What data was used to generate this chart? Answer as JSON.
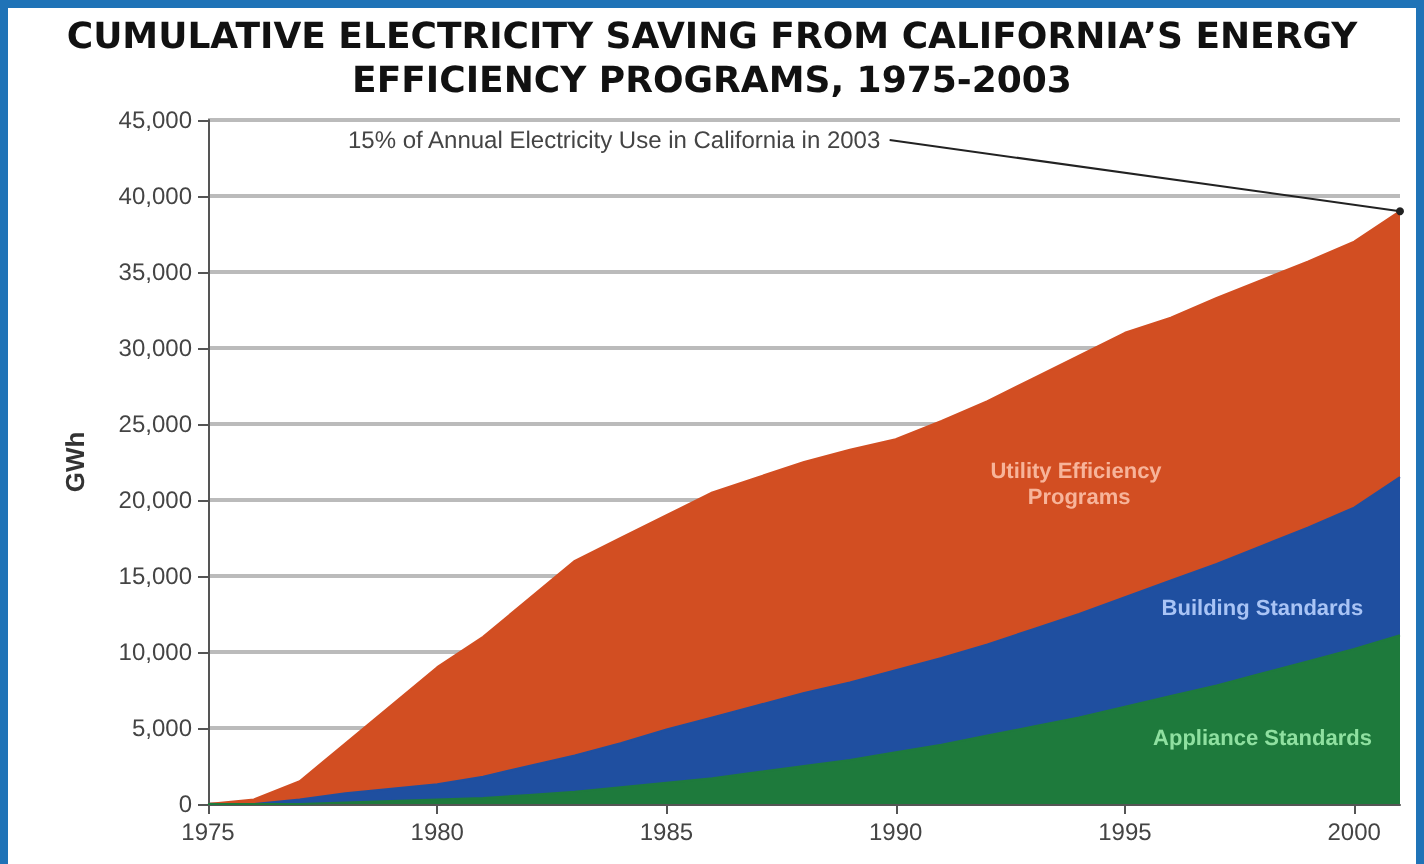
{
  "chart_data": {
    "type": "area",
    "stacked": true,
    "title": "CUMULATIVE ELECTRICITY SAVING FROM CALIFORNIA’S ENERGY EFFICIENCY PROGRAMS, 1975-2003",
    "ylabel": "GWh",
    "x": [
      1975,
      1976,
      1977,
      1978,
      1979,
      1980,
      1981,
      1982,
      1983,
      1984,
      1985,
      1986,
      1987,
      1988,
      1989,
      1990,
      1991,
      1992,
      1993,
      1994,
      1995,
      1996,
      1997,
      1998,
      1999,
      2000,
      2001
    ],
    "series": [
      {
        "name": "Appliance Standards",
        "color": "#1e7a3c",
        "values": [
          0,
          0,
          0,
          100,
          200,
          300,
          400,
          600,
          800,
          1100,
          1400,
          1700,
          2100,
          2500,
          2900,
          3400,
          3900,
          4500,
          5100,
          5700,
          6400,
          7100,
          7800,
          8600,
          9400,
          10200,
          11100
        ]
      },
      {
        "name": "Building Standards",
        "color": "#1f4fa0",
        "values": [
          0,
          0,
          300,
          600,
          800,
          1000,
          1400,
          1900,
          2400,
          2900,
          3500,
          4000,
          4400,
          4800,
          5100,
          5400,
          5700,
          6000,
          6400,
          6800,
          7200,
          7600,
          8000,
          8400,
          8800,
          9300,
          10400
        ]
      },
      {
        "name": "Utility Efficiency Programs",
        "color": "#d24e22",
        "values": [
          0,
          300,
          1200,
          3300,
          5500,
          7700,
          9200,
          11000,
          12800,
          13500,
          14100,
          14800,
          15000,
          15200,
          15300,
          15200,
          15600,
          16000,
          16500,
          17000,
          17400,
          17300,
          17500,
          17500,
          17500,
          17500,
          17500
        ]
      }
    ],
    "xlim": [
      1975,
      2001
    ],
    "xticks": [
      1975,
      1980,
      1985,
      1990,
      1995,
      2000
    ],
    "ylim": [
      0,
      45000
    ],
    "yticks": [
      {
        "value": 0,
        "label": "0"
      },
      {
        "value": 5000,
        "label": "5,000"
      },
      {
        "value": 10000,
        "label": "10,000"
      },
      {
        "value": 15000,
        "label": "15,000"
      },
      {
        "value": 20000,
        "label": "20,000"
      },
      {
        "value": 25000,
        "label": "25,000"
      },
      {
        "value": 30000,
        "label": "30,000"
      },
      {
        "value": 35000,
        "label": "35,000"
      },
      {
        "value": 40000,
        "label": "40,000"
      },
      {
        "value": 45000,
        "label": "45,000"
      }
    ],
    "grid": "y",
    "legend": false,
    "marker": "none",
    "annotations": [
      {
        "text": "15% of Annual Electricity Use in California in 2003",
        "x": 2001,
        "y": 39000
      }
    ]
  }
}
